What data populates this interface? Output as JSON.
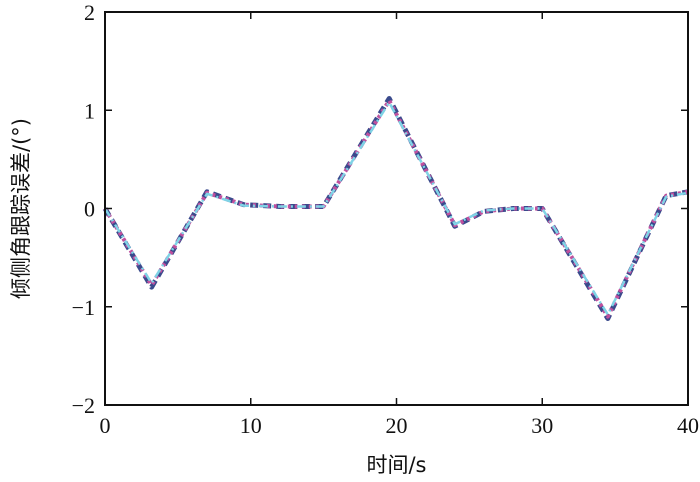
{
  "chart_data": {
    "type": "line",
    "title": "",
    "xlabel": "时间/s",
    "ylabel": "倾侧角跟踪误差/(°)",
    "xlim": [
      0,
      40
    ],
    "ylim": [
      -2,
      2
    ],
    "xticks": [
      0,
      10,
      20,
      30,
      40
    ],
    "yticks": [
      2,
      1,
      0,
      -1,
      -2
    ],
    "xtick_labels": [
      "0",
      "10",
      "20",
      "30",
      "40"
    ],
    "ytick_labels": [
      "2",
      "1",
      "0",
      "−1",
      "−2"
    ],
    "grid": false,
    "legend": false,
    "series": [
      {
        "color": "#3a4a8c",
        "style": "dashed",
        "x": [
          0,
          3.2,
          7,
          9.5,
          12,
          15,
          19.5,
          24,
          26,
          28,
          30,
          34.5,
          38.5,
          40
        ],
        "y": [
          0,
          -0.8,
          0.17,
          0.04,
          0.02,
          0.02,
          1.12,
          -0.18,
          -0.03,
          0.0,
          0.0,
          -1.12,
          0.13,
          0.17
        ]
      },
      {
        "color": "#c0509e",
        "style": "dotted",
        "x": [
          0,
          3.2,
          7,
          9.5,
          12,
          15,
          19.5,
          24,
          26,
          28,
          30,
          34.5,
          38.5,
          40
        ],
        "y": [
          0,
          -0.78,
          0.16,
          0.04,
          0.02,
          0.02,
          1.1,
          -0.17,
          -0.03,
          0.0,
          0.0,
          -1.1,
          0.13,
          0.17
        ]
      },
      {
        "color": "#7fd3e6",
        "style": "dashdot",
        "x": [
          0,
          3.2,
          7,
          9.5,
          12,
          15,
          19.5,
          24,
          26,
          28,
          30,
          34.5,
          38.5,
          40
        ],
        "y": [
          0,
          -0.76,
          0.15,
          0.03,
          0.02,
          0.02,
          1.08,
          -0.16,
          -0.02,
          0.0,
          0.0,
          -1.08,
          0.12,
          0.16
        ]
      }
    ]
  }
}
